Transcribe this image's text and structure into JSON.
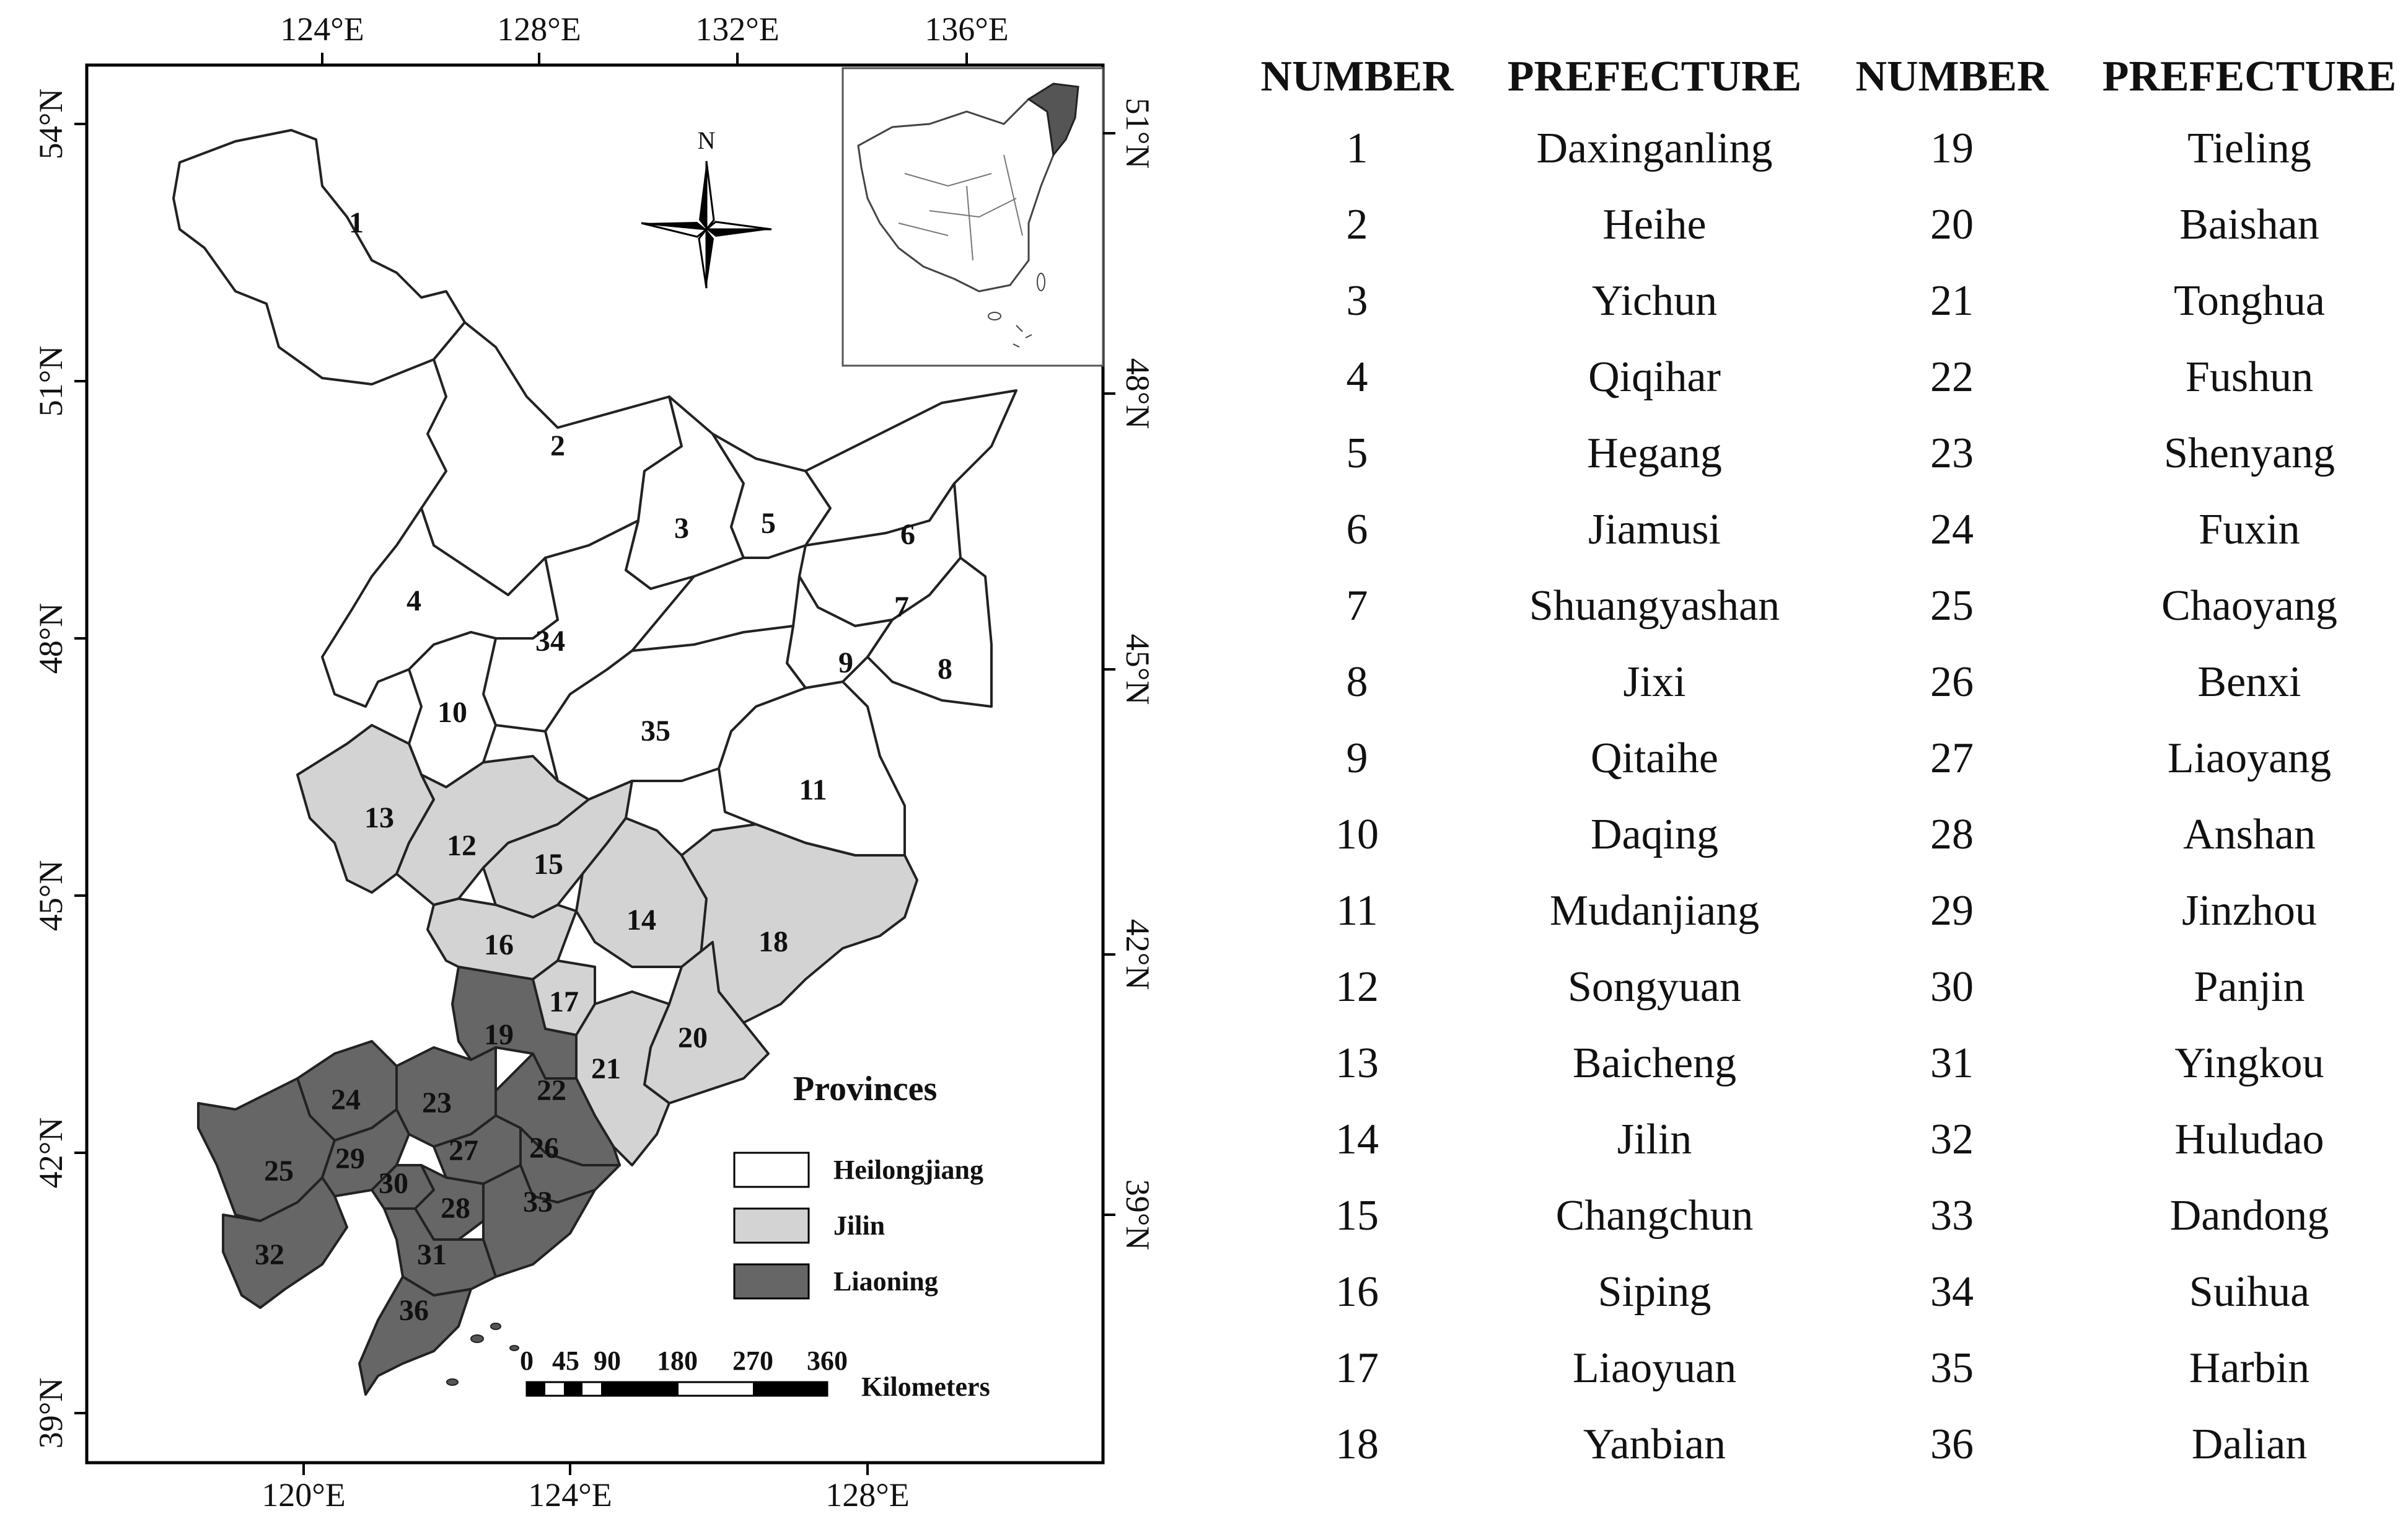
{
  "map": {
    "lon_ticks_top": [
      "124°E",
      "128°E",
      "132°E",
      "136°E"
    ],
    "lon_ticks_bottom": [
      "120°E",
      "124°E",
      "128°E"
    ],
    "lat_ticks_left": [
      "54°N",
      "51°N",
      "48°N",
      "45°N",
      "42°N",
      "39°N"
    ],
    "lat_ticks_right": [
      "51°N",
      "48°N",
      "45°N",
      "42°N",
      "39°N"
    ],
    "north_label": "N",
    "legend": {
      "title": "Provinces",
      "items": [
        {
          "label": "Heilongjiang",
          "color": "#ffffff"
        },
        {
          "label": "Jilin",
          "color": "#d3d3d3"
        },
        {
          "label": "Liaoning",
          "color": "#666666"
        }
      ]
    },
    "scale_bar": {
      "ticks": [
        "0",
        "45",
        "90",
        "180",
        "270",
        "360"
      ],
      "unit": "Kilometers"
    },
    "region_labels": [
      "1",
      "2",
      "3",
      "4",
      "5",
      "6",
      "7",
      "8",
      "9",
      "10",
      "11",
      "12",
      "13",
      "14",
      "15",
      "16",
      "17",
      "18",
      "19",
      "20",
      "21",
      "22",
      "23",
      "24",
      "25",
      "26",
      "27",
      "28",
      "29",
      "30",
      "31",
      "32",
      "33",
      "34",
      "35",
      "36"
    ]
  },
  "table": {
    "headers": [
      "NUMBER",
      "PREFECTURE",
      "NUMBER",
      "PREFECTURE"
    ],
    "rows": [
      [
        "1",
        "Daxinganling",
        "19",
        "Tieling"
      ],
      [
        "2",
        "Heihe",
        "20",
        "Baishan"
      ],
      [
        "3",
        "Yichun",
        "21",
        "Tonghua"
      ],
      [
        "4",
        "Qiqihar",
        "22",
        "Fushun"
      ],
      [
        "5",
        "Hegang",
        "23",
        "Shenyang"
      ],
      [
        "6",
        "Jiamusi",
        "24",
        "Fuxin"
      ],
      [
        "7",
        "Shuangyashan",
        "25",
        "Chaoyang"
      ],
      [
        "8",
        "Jixi",
        "26",
        "Benxi"
      ],
      [
        "9",
        "Qitaihe",
        "27",
        "Liaoyang"
      ],
      [
        "10",
        "Daqing",
        "28",
        "Anshan"
      ],
      [
        "11",
        "Mudanjiang",
        "29",
        "Jinzhou"
      ],
      [
        "12",
        "Songyuan",
        "30",
        "Panjin"
      ],
      [
        "13",
        "Baicheng",
        "31",
        "Yingkou"
      ],
      [
        "14",
        "Jilin",
        "32",
        "Huludao"
      ],
      [
        "15",
        "Changchun",
        "33",
        "Dandong"
      ],
      [
        "16",
        "Siping",
        "34",
        "Suihua"
      ],
      [
        "17",
        "Liaoyuan",
        "35",
        "Harbin"
      ],
      [
        "18",
        "Yanbian",
        "36",
        "Dalian"
      ]
    ]
  }
}
